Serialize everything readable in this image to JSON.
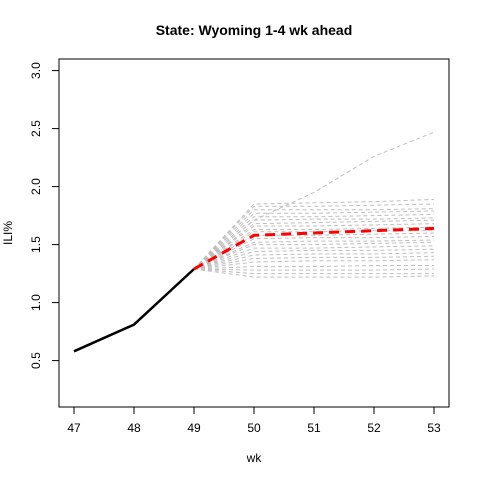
{
  "chart_data": {
    "type": "line",
    "title": "State: Wyoming 1-4 wk ahead",
    "xlabel": "wk",
    "ylabel": "ILI%",
    "xlim": [
      47,
      53
    ],
    "ylim": [
      0.1,
      3.1
    ],
    "x_ticks": [
      "47",
      "48",
      "49",
      "50",
      "51",
      "52",
      "53"
    ],
    "y_ticks": [
      "0.5",
      "1.0",
      "1.5",
      "2.0",
      "2.5",
      "3.0"
    ],
    "grid": false,
    "legend": "none",
    "colors": {
      "observed": "#000000",
      "forecast": "#ff0000",
      "samples": "#bebebe"
    },
    "series": [
      {
        "role": "observed",
        "x": [
          47,
          48,
          49
        ],
        "values": [
          0.58,
          0.81,
          1.29
        ]
      },
      {
        "role": "forecast",
        "x": [
          49,
          50,
          51,
          52,
          53
        ],
        "values": [
          1.29,
          1.58,
          1.6,
          1.62,
          1.64
        ]
      },
      {
        "role": "sample",
        "x": [
          49,
          50,
          51,
          52,
          53
        ],
        "values": [
          1.29,
          1.71,
          1.95,
          2.26,
          2.47
        ]
      },
      {
        "role": "sample",
        "x": [
          49,
          50,
          51,
          52,
          53
        ],
        "values": [
          1.29,
          1.85,
          1.86,
          1.87,
          1.89
        ]
      },
      {
        "role": "sample",
        "x": [
          49,
          50,
          51,
          52,
          53
        ],
        "values": [
          1.29,
          1.83,
          1.83,
          1.84,
          1.85
        ]
      },
      {
        "role": "sample",
        "x": [
          49,
          50,
          51,
          52,
          53
        ],
        "values": [
          1.29,
          1.8,
          1.8,
          1.8,
          1.81
        ]
      },
      {
        "role": "sample",
        "x": [
          49,
          50,
          51,
          52,
          53
        ],
        "values": [
          1.29,
          1.77,
          1.77,
          1.78,
          1.79
        ]
      },
      {
        "role": "sample",
        "x": [
          49,
          50,
          51,
          52,
          53
        ],
        "values": [
          1.29,
          1.74,
          1.74,
          1.75,
          1.76
        ]
      },
      {
        "role": "sample",
        "x": [
          49,
          50,
          51,
          52,
          53
        ],
        "values": [
          1.29,
          1.71,
          1.72,
          1.72,
          1.73
        ]
      },
      {
        "role": "sample",
        "x": [
          49,
          50,
          51,
          52,
          53
        ],
        "values": [
          1.29,
          1.68,
          1.69,
          1.7,
          1.71
        ]
      },
      {
        "role": "sample",
        "x": [
          49,
          50,
          51,
          52,
          53
        ],
        "values": [
          1.29,
          1.66,
          1.66,
          1.67,
          1.68
        ]
      },
      {
        "role": "sample",
        "x": [
          49,
          50,
          51,
          52,
          53
        ],
        "values": [
          1.29,
          1.63,
          1.63,
          1.64,
          1.65
        ]
      },
      {
        "role": "sample",
        "x": [
          49,
          50,
          51,
          52,
          53
        ],
        "values": [
          1.29,
          1.61,
          1.61,
          1.62,
          1.62
        ]
      },
      {
        "role": "sample",
        "x": [
          49,
          50,
          51,
          52,
          53
        ],
        "values": [
          1.29,
          1.58,
          1.58,
          1.59,
          1.6
        ]
      },
      {
        "role": "sample",
        "x": [
          49,
          50,
          51,
          52,
          53
        ],
        "values": [
          1.29,
          1.55,
          1.56,
          1.56,
          1.57
        ]
      },
      {
        "role": "sample",
        "x": [
          49,
          50,
          51,
          52,
          53
        ],
        "values": [
          1.29,
          1.52,
          1.53,
          1.53,
          1.54
        ]
      },
      {
        "role": "sample",
        "x": [
          49,
          50,
          51,
          52,
          53
        ],
        "values": [
          1.29,
          1.5,
          1.5,
          1.51,
          1.52
        ]
      },
      {
        "role": "sample",
        "x": [
          49,
          50,
          51,
          52,
          53
        ],
        "values": [
          1.29,
          1.47,
          1.47,
          1.48,
          1.49
        ]
      },
      {
        "role": "sample",
        "x": [
          49,
          50,
          51,
          52,
          53
        ],
        "values": [
          1.29,
          1.44,
          1.45,
          1.45,
          1.46
        ]
      },
      {
        "role": "sample",
        "x": [
          49,
          50,
          51,
          52,
          53
        ],
        "values": [
          1.29,
          1.41,
          1.42,
          1.42,
          1.43
        ]
      },
      {
        "role": "sample",
        "x": [
          49,
          50,
          51,
          52,
          53
        ],
        "values": [
          1.29,
          1.38,
          1.39,
          1.39,
          1.4
        ]
      },
      {
        "role": "sample",
        "x": [
          49,
          50,
          51,
          52,
          53
        ],
        "values": [
          1.29,
          1.35,
          1.36,
          1.36,
          1.37
        ]
      },
      {
        "role": "sample",
        "x": [
          49,
          50,
          51,
          52,
          53
        ],
        "values": [
          1.29,
          1.31,
          1.31,
          1.32,
          1.32
        ]
      },
      {
        "role": "sample",
        "x": [
          49,
          50,
          51,
          52,
          53
        ],
        "values": [
          1.29,
          1.28,
          1.28,
          1.28,
          1.29
        ]
      },
      {
        "role": "sample",
        "x": [
          49,
          50,
          51,
          52,
          53
        ],
        "values": [
          1.29,
          1.25,
          1.25,
          1.25,
          1.25
        ]
      },
      {
        "role": "sample",
        "x": [
          49,
          50,
          51,
          52,
          53
        ],
        "values": [
          1.29,
          1.22,
          1.22,
          1.22,
          1.23
        ]
      }
    ]
  }
}
